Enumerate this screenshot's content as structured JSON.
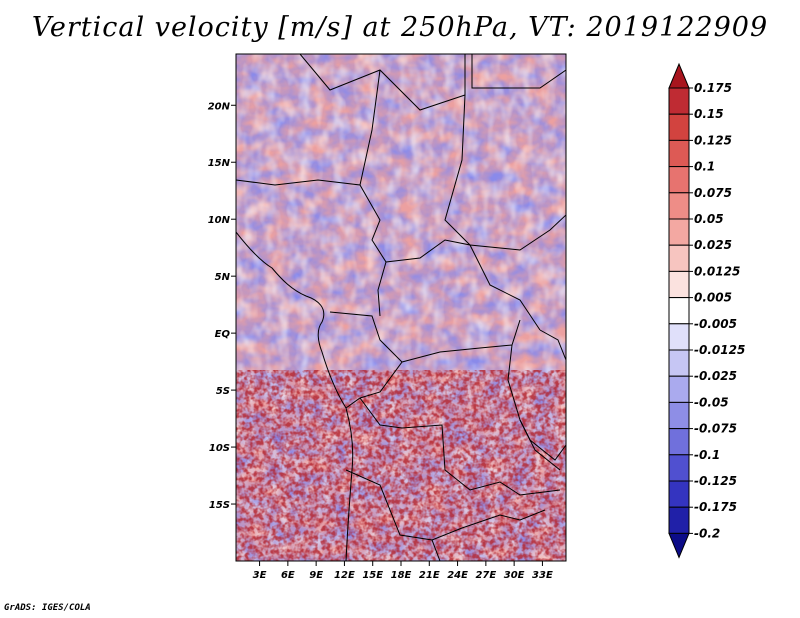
{
  "chart_data": {
    "type": "heatmap",
    "title": "Vertical velocity [m/s] at 250hPa, VT: 2019122909",
    "variable": "Vertical velocity",
    "units": "m/s",
    "level": "250hPa",
    "valid_time": "2019122909",
    "xlabel": "",
    "ylabel": "",
    "x_axis": {
      "labels": [
        "3E",
        "6E",
        "9E",
        "12E",
        "15E",
        "18E",
        "21E",
        "24E",
        "27E",
        "30E",
        "33E"
      ],
      "values": [
        3,
        6,
        9,
        12,
        15,
        18,
        21,
        24,
        27,
        30,
        33
      ],
      "range": [
        0.5,
        35.5
      ]
    },
    "y_axis": {
      "labels": [
        "20N",
        "15N",
        "10N",
        "5N",
        "EQ",
        "5S",
        "10S",
        "15S"
      ],
      "values": [
        20,
        15,
        10,
        5,
        0,
        -5,
        -10,
        -15
      ],
      "range": [
        -20,
        24.5
      ]
    },
    "colorbar": {
      "levels": [
        "0.175",
        "0.15",
        "0.125",
        "0.1",
        "0.075",
        "0.05",
        "0.025",
        "0.0125",
        "0.005",
        "-0.005",
        "-0.0125",
        "-0.025",
        "-0.05",
        "-0.075",
        "-0.1",
        "-0.125",
        "-0.175",
        "-0.2"
      ],
      "colors": [
        "#a8151e",
        "#bf2b33",
        "#d2433f",
        "#dd5a55",
        "#e7736f",
        "#ee8d87",
        "#f3a8a2",
        "#f7c5c0",
        "#fbe2df",
        "#ffffff",
        "#e0e0fa",
        "#c6c6f4",
        "#aaaaee",
        "#8e8ee6",
        "#7070dc",
        "#5050d0",
        "#3434c0",
        "#2020a8",
        "#0c0c88"
      ],
      "extend": "both"
    }
  },
  "footer": "GrADS: IGES/COLA"
}
